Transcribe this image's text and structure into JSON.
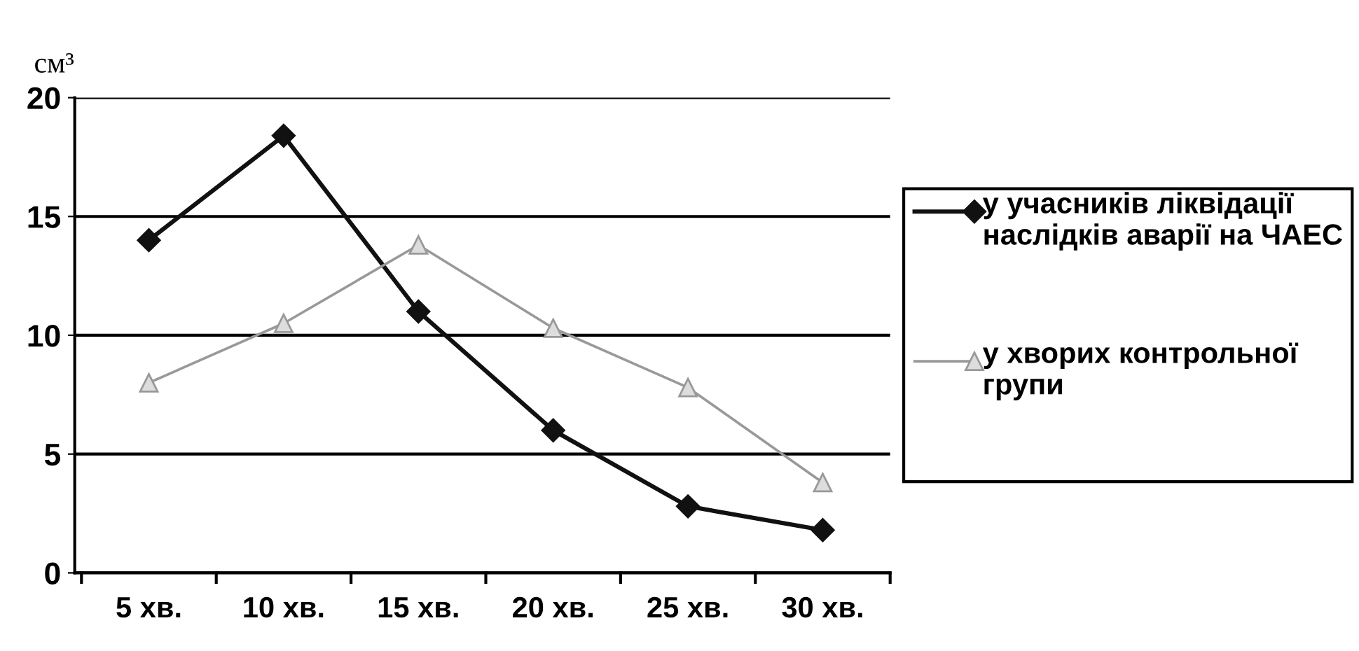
{
  "chart_data": {
    "type": "line",
    "ylabel": "см³",
    "categories": [
      "5 хв.",
      "10 хв.",
      "15 хв.",
      "20 хв.",
      "25 хв.",
      "30 хв."
    ],
    "series": [
      {
        "name": "у учасників ліквідації наслідків аварії на ЧАЕС",
        "color": "#111111",
        "marker": "diamond",
        "values": [
          14,
          18.4,
          11,
          6,
          2.8,
          1.8
        ]
      },
      {
        "name": "у хворих контрольної групи",
        "color": "#999999",
        "marker": "triangle",
        "values": [
          8,
          10.5,
          13.8,
          10.3,
          7.8,
          3.8
        ]
      }
    ],
    "ylim": [
      0,
      20
    ],
    "yticks": [
      0,
      5,
      10,
      15,
      20
    ],
    "grid": "y",
    "legend": "right"
  }
}
